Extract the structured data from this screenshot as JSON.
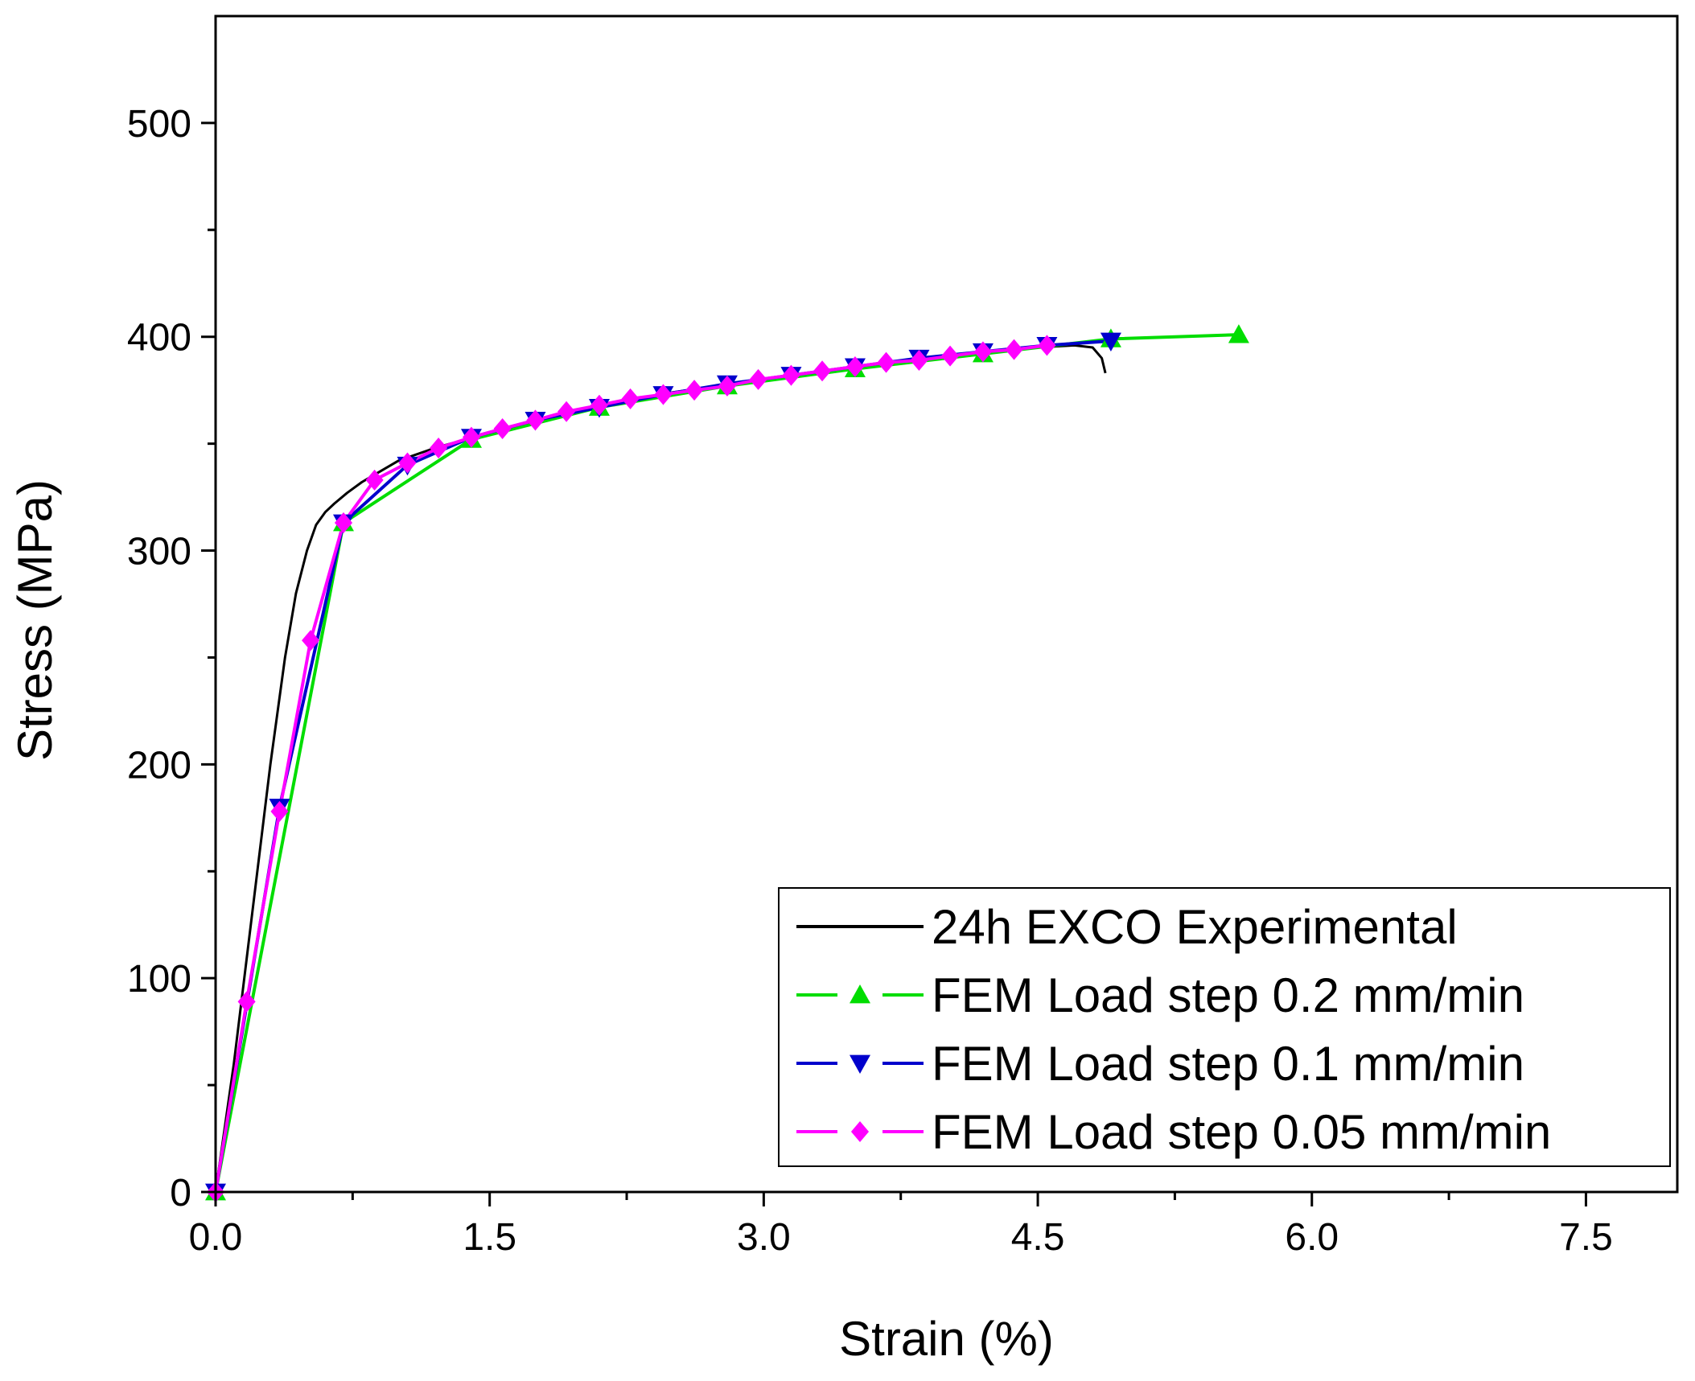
{
  "chart_data": {
    "type": "line",
    "title": "",
    "xlabel": "Strain (%)",
    "ylabel": "Stress (MPa)",
    "xlim": [
      0,
      8
    ],
    "ylim": [
      0,
      550
    ],
    "x_ticks": [
      "0.0",
      "1.5",
      "3.0",
      "4.5",
      "6.0",
      "7.5"
    ],
    "y_ticks": [
      "0",
      "100",
      "200",
      "300",
      "400",
      "500"
    ],
    "grid": false,
    "legend_position": "bottom-right",
    "series": [
      {
        "name": "24h EXCO Experimental",
        "color": "#000000",
        "marker": "none",
        "x": [
          0,
          0.1,
          0.2,
          0.3,
          0.38,
          0.44,
          0.5,
          0.55,
          0.6,
          0.65,
          0.72,
          0.8,
          0.9,
          1.0,
          1.2,
          1.5,
          2.0,
          2.5,
          3.0,
          3.5,
          4.0,
          4.5,
          4.7,
          4.8,
          4.85,
          4.87
        ],
        "y": [
          0,
          60,
          130,
          200,
          250,
          280,
          300,
          312,
          318,
          322,
          327,
          332,
          337,
          342,
          348,
          355,
          366,
          374,
          380,
          386,
          391,
          395,
          396,
          395,
          390,
          383
        ]
      },
      {
        "name": "FEM Load step 0.2 mm/min",
        "color": "#00dd00",
        "marker": "triangle-up",
        "x": [
          0,
          0.7,
          1.4,
          2.1,
          2.8,
          3.5,
          4.2,
          4.9,
          5.6
        ],
        "y": [
          0,
          313,
          352,
          367,
          377,
          385,
          392,
          399,
          401
        ]
      },
      {
        "name": "FEM Load step 0.1 mm/min",
        "color": "#0000cc",
        "marker": "triangle-down",
        "x": [
          0,
          0.35,
          0.7,
          1.05,
          1.4,
          1.75,
          2.1,
          2.45,
          2.8,
          3.15,
          3.5,
          3.85,
          4.2,
          4.55,
          4.9
        ],
        "y": [
          0,
          180,
          313,
          340,
          353,
          361,
          367,
          373,
          378,
          382,
          386,
          390,
          393,
          396,
          398
        ]
      },
      {
        "name": "FEM Load step 0.05 mm/min",
        "color": "#ff00ff",
        "marker": "diamond",
        "x": [
          0,
          0.17,
          0.35,
          0.52,
          0.7,
          0.87,
          1.05,
          1.22,
          1.4,
          1.57,
          1.75,
          1.92,
          2.1,
          2.27,
          2.45,
          2.62,
          2.8,
          2.97,
          3.15,
          3.32,
          3.5,
          3.67,
          3.85,
          4.02,
          4.2,
          4.37,
          4.55
        ],
        "y": [
          0,
          89,
          178,
          258,
          313,
          333,
          341,
          348,
          353,
          357,
          361,
          365,
          368,
          371,
          373,
          375,
          377,
          380,
          382,
          384,
          386,
          388,
          389,
          391,
          393,
          394,
          396
        ]
      }
    ]
  }
}
